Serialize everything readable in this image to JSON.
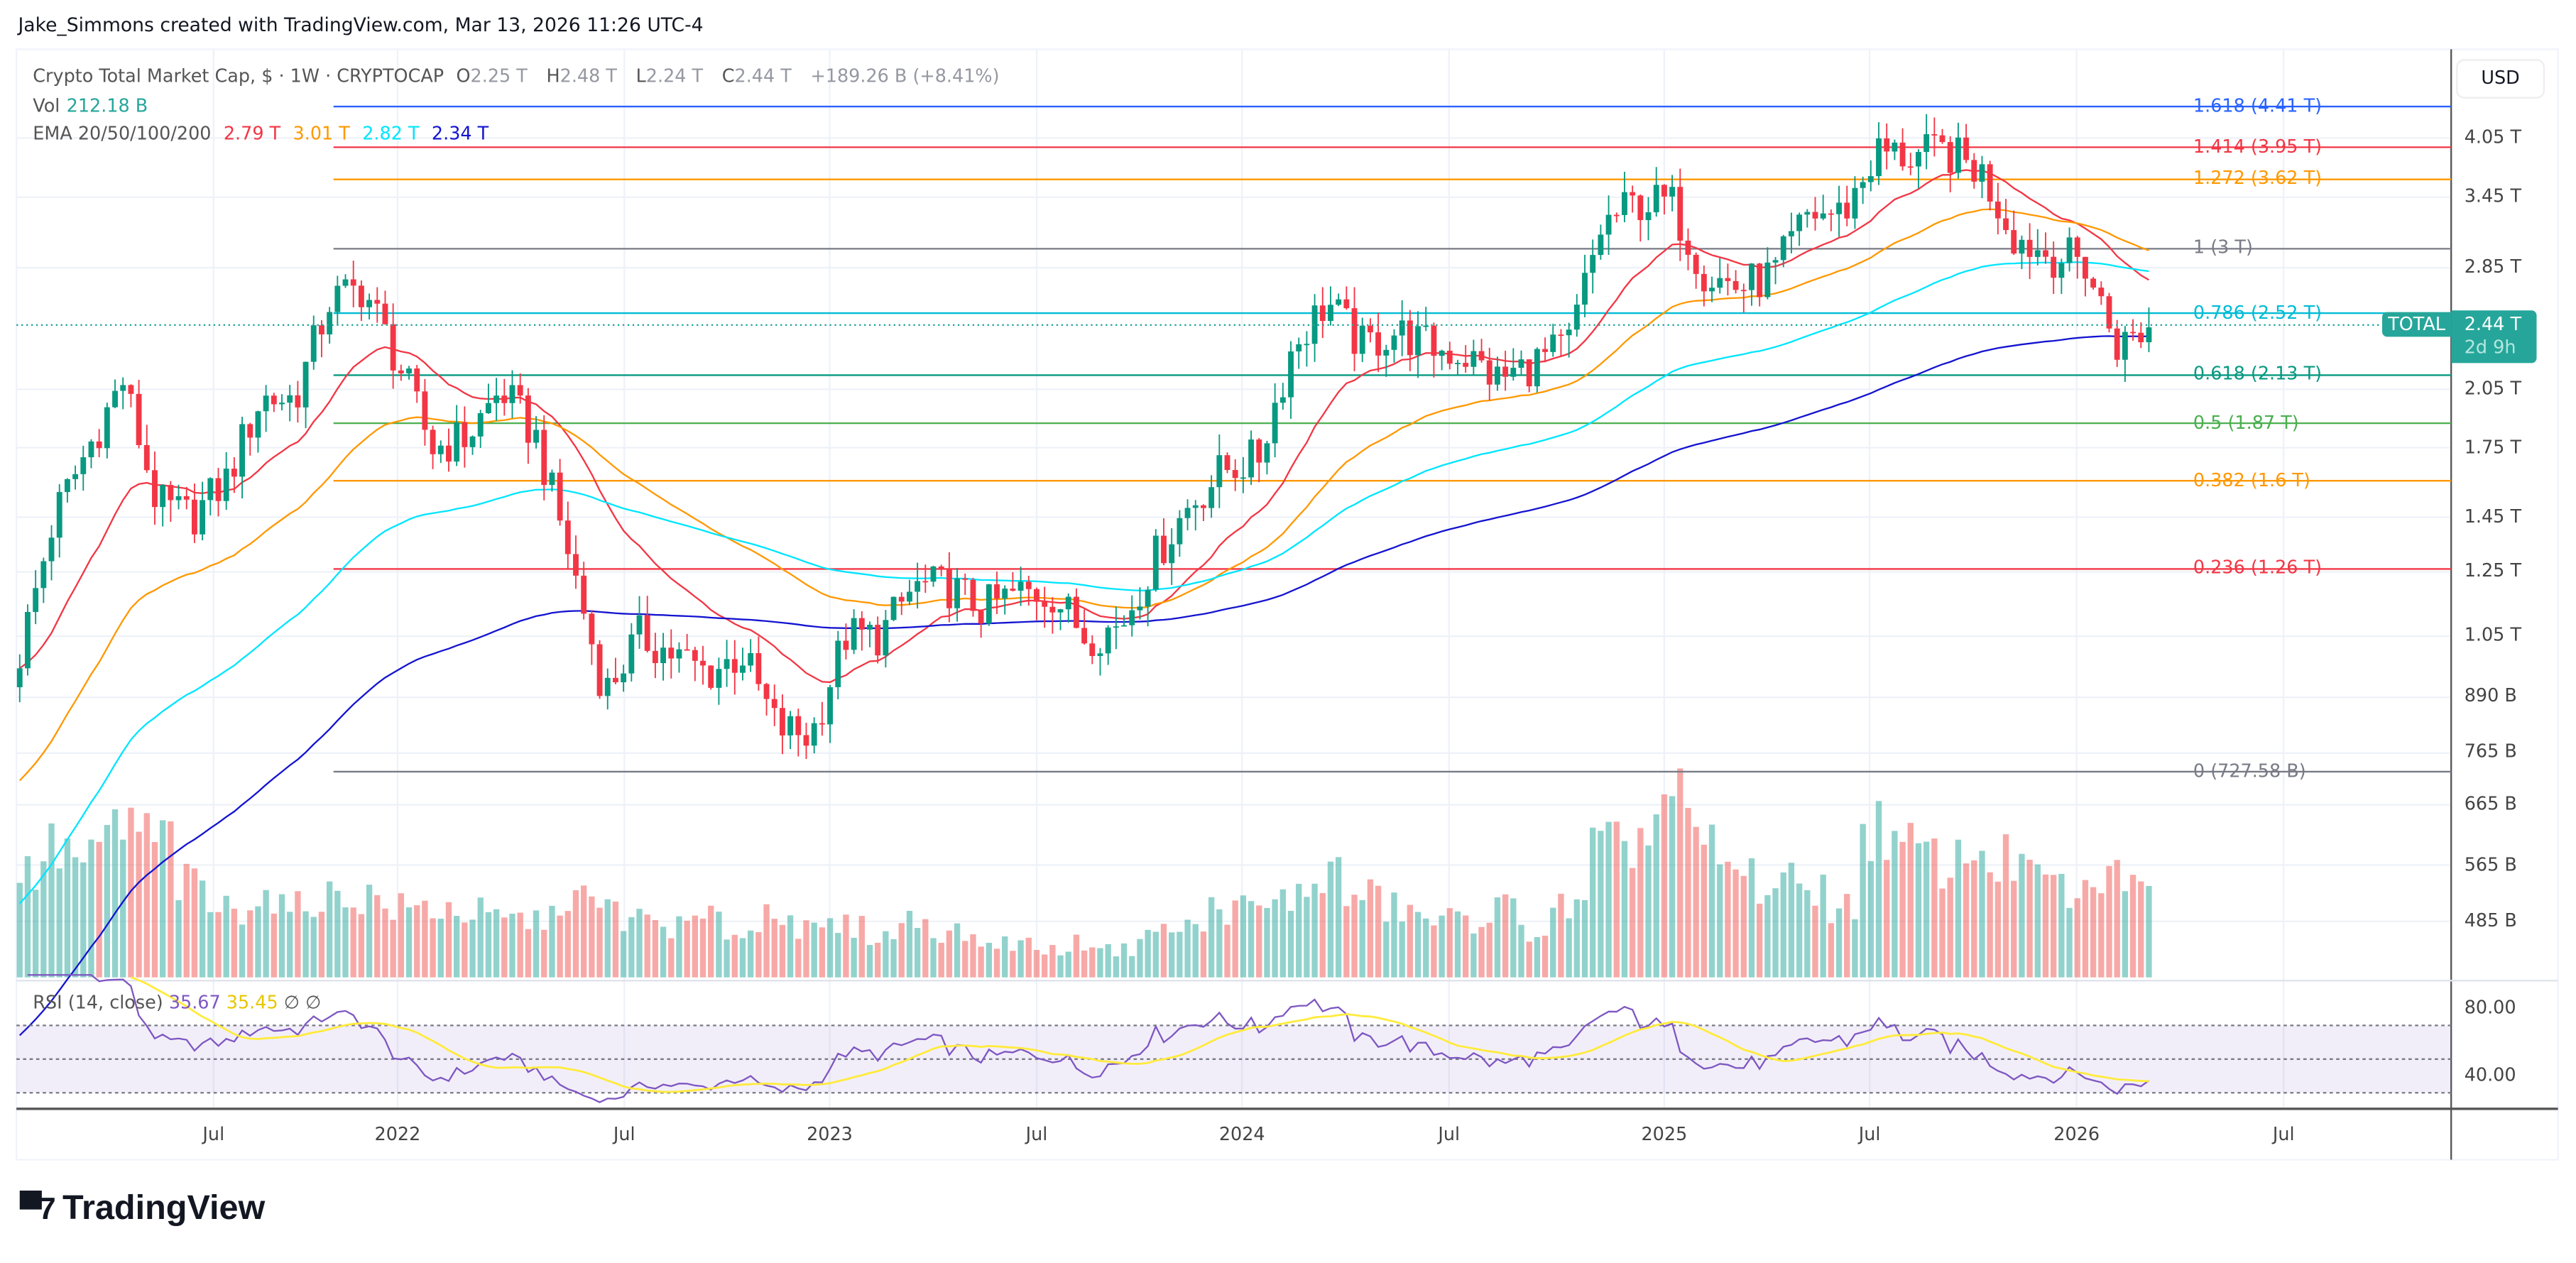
{
  "header": {
    "credit": "Jake_Simmons created with TradingView.com, Mar 13, 2026 11:26 UTC-4"
  },
  "legend": {
    "symbol": "Crypto Total Market Cap, $ · 1W · CRYPTOCAP",
    "o_label": "O",
    "o": "2.25 T",
    "h_label": "H",
    "h": "2.48 T",
    "l_label": "L",
    "l": "2.24 T",
    "c_label": "C",
    "c": "2.44 T",
    "change": "+189.26 B (+8.41%)",
    "vol_label": "Vol",
    "vol": "212.18 B",
    "ema_label": "EMA 20/50/100/200",
    "ema": [
      {
        "value": "2.79 T",
        "color": "#f23645"
      },
      {
        "value": "3.01 T",
        "color": "#ff9800"
      },
      {
        "value": "2.82 T",
        "color": "#00e5ff"
      },
      {
        "value": "2.34 T",
        "color": "#1414d0"
      }
    ]
  },
  "price_axis": {
    "currency": "USD",
    "labels": [
      "4.05 T",
      "3.45 T",
      "2.85 T",
      "2.05 T",
      "1.75 T",
      "1.45 T",
      "1.25 T",
      "1.05 T",
      "890 B",
      "765 B",
      "665 B",
      "565 B",
      "485 B"
    ],
    "label_values": [
      4.05,
      3.45,
      2.85,
      2.05,
      1.75,
      1.45,
      1.25,
      1.05,
      0.89,
      0.765,
      0.665,
      0.565,
      0.485
    ],
    "last_symbol": "TOTAL",
    "last_price": "2.44 T",
    "countdown": "2d 9h",
    "last_value": 2.44
  },
  "time_axis": {
    "labels": [
      "Jul",
      "2022",
      "Jul",
      "2023",
      "Jul",
      "2024",
      "Jul",
      "2025",
      "Jul",
      "2026",
      "Jul"
    ]
  },
  "rsi": {
    "label": "RSI (14, close)",
    "value": "35.67",
    "ma": "35.45",
    "extra": [
      "∅",
      "∅"
    ],
    "axis": [
      "80.00",
      "40.00"
    ],
    "color": "#7e57c2",
    "ma_color": "#ffeb3b"
  },
  "logo": {
    "text": "TradingView"
  },
  "chart_data": {
    "type": "candlestick",
    "scale": "log",
    "unit": "T USD",
    "interval": "1W",
    "period": "2021-01 to 2026-03",
    "monthly_close": [
      1.0,
      1.45,
      1.75,
      2.1,
      1.5,
      1.45,
      1.6,
      2.0,
      2.0,
      2.6,
      2.7,
      2.2,
      1.75,
      1.8,
      2.05,
      1.8,
      1.3,
      0.9,
      1.05,
      1.0,
      0.95,
      1.0,
      0.82,
      0.8,
      1.05,
      1.05,
      1.2,
      1.2,
      1.13,
      1.18,
      1.18,
      1.05,
      1.08,
      1.3,
      1.5,
      1.65,
      1.7,
      2.3,
      2.6,
      2.3,
      2.4,
      2.3,
      2.25,
      2.1,
      2.2,
      2.3,
      3.2,
      3.4,
      3.4,
      2.8,
      2.7,
      2.8,
      3.3,
      3.3,
      3.9,
      3.85,
      3.9,
      3.7,
      3.1,
      2.95,
      2.9,
      2.3,
      2.44
    ],
    "monthly_volume_relative": [
      0.45,
      0.55,
      0.5,
      0.65,
      0.6,
      0.4,
      0.3,
      0.35,
      0.3,
      0.35,
      0.35,
      0.3,
      0.3,
      0.28,
      0.25,
      0.25,
      0.35,
      0.3,
      0.25,
      0.22,
      0.25,
      0.2,
      0.3,
      0.2,
      0.22,
      0.18,
      0.25,
      0.2,
      0.15,
      0.15,
      0.12,
      0.15,
      0.12,
      0.2,
      0.22,
      0.3,
      0.3,
      0.35,
      0.45,
      0.35,
      0.3,
      0.25,
      0.25,
      0.3,
      0.2,
      0.3,
      0.55,
      0.6,
      0.75,
      0.55,
      0.45,
      0.4,
      0.4,
      0.3,
      0.65,
      0.55,
      0.5,
      0.55,
      0.5,
      0.4,
      0.35,
      0.45,
      0.35
    ],
    "ema_periods": [
      20,
      50,
      100,
      200
    ],
    "fib_levels": [
      {
        "ratio": "1.618",
        "price": "4.41 T",
        "value": 4.41,
        "color": "#2962ff"
      },
      {
        "ratio": "1.414",
        "price": "3.95 T",
        "value": 3.95,
        "color": "#f23645"
      },
      {
        "ratio": "1.272",
        "price": "3.62 T",
        "value": 3.62,
        "color": "#ff9800"
      },
      {
        "ratio": "1",
        "price": "3 T",
        "value": 3.0,
        "color": "#787b86"
      },
      {
        "ratio": "0.786",
        "price": "2.52 T",
        "value": 2.52,
        "color": "#00bcd4"
      },
      {
        "ratio": "0.618",
        "price": "2.13 T",
        "value": 2.13,
        "color": "#089981"
      },
      {
        "ratio": "0.5",
        "price": "1.87 T",
        "value": 1.87,
        "color": "#4caf50"
      },
      {
        "ratio": "0.382",
        "price": "1.6 T",
        "value": 1.6,
        "color": "#ff9800"
      },
      {
        "ratio": "0.236",
        "price": "1.26 T",
        "value": 1.26,
        "color": "#f23645"
      },
      {
        "ratio": "0",
        "price": "727.58 B",
        "value": 0.72758,
        "color": "#787b86"
      }
    ],
    "rsi_levels": [
      70,
      50,
      30
    ],
    "colors": {
      "up": "#089981",
      "down": "#f23645"
    }
  }
}
